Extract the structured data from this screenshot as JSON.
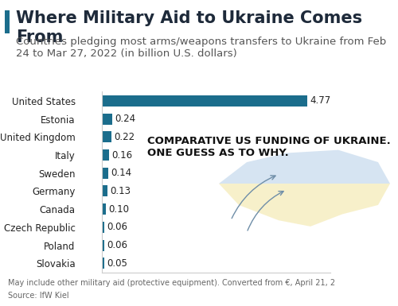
{
  "chart_data": {
    "type": "bar",
    "orientation": "horizontal",
    "title": "Where Military Aid to Ukraine Comes From",
    "subtitle": "Countries pledging most arms/weapons transfers to Ukraine from Feb 24 to Mar 27, 2022 (in billion U.S. dollars)",
    "categories": [
      "United States",
      "Estonia",
      "United Kingdom",
      "Italy",
      "Sweden",
      "Germany",
      "Canada",
      "Czech Republic",
      "Poland",
      "Slovakia"
    ],
    "values": [
      4.77,
      0.24,
      0.22,
      0.16,
      0.14,
      0.13,
      0.1,
      0.06,
      0.06,
      0.05
    ],
    "value_labels": [
      "4.77",
      "0.24",
      "0.22",
      "0.16",
      "0.14",
      "0.13",
      "0.10",
      "0.06",
      "0.06",
      "0.05"
    ],
    "data_labels": true,
    "color": "#1b6d8c",
    "xlim": [
      0,
      5.3
    ],
    "xticks": [],
    "tick_labels": "y",
    "grid": false,
    "annotations": [
      "COMPARATIVE US FUNDING OF UKRAINE. ONE GUESS AS TO WHY."
    ],
    "footnote": "May include other military aid (protective equipment). Converted from €, April 21, 2",
    "source": "Source: IfW Kiel"
  }
}
